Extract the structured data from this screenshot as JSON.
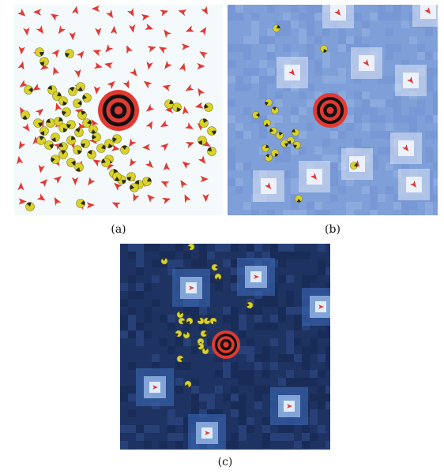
{
  "figure": {
    "panels": [
      {
        "id": "a",
        "label": "(a)",
        "background": "#f4f9fc"
      },
      {
        "id": "b",
        "label": "(b)",
        "background": "#7e9fd8"
      },
      {
        "id": "c",
        "label": "(c)",
        "background": "#1e3362"
      }
    ]
  },
  "colors": {
    "target_red": "#e13a33",
    "target_black": "#111111",
    "triangle_red": "#e13a33",
    "agent_yellow": "#d9d22a",
    "agent_dark": "#2b2b14",
    "light_patch_b": "#dfe6f6",
    "light_patch_c": "#9fc0ee"
  }
}
